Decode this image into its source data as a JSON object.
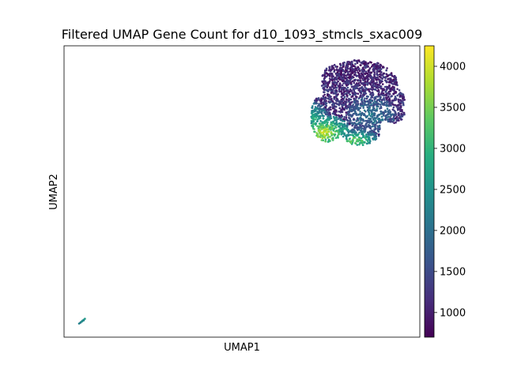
{
  "chart_data": {
    "type": "scatter",
    "title": "Filtered UMAP Gene Count for d10_1093_stmcls_sxac009",
    "xlabel": "UMAP1",
    "ylabel": "UMAP2",
    "x_ticks": [],
    "y_ticks": [],
    "grid": false,
    "colormap": "viridis",
    "colorbar": {
      "min": 700,
      "max": 4250,
      "ticks": [
        1000,
        1500,
        2000,
        2500,
        3000,
        3500,
        4000
      ],
      "tick_labels": [
        "1000",
        "1500",
        "2000",
        "2500",
        "3000",
        "3500",
        "4000"
      ]
    },
    "xlim": [
      0,
      100
    ],
    "ylim": [
      0,
      100
    ],
    "clusters": [
      {
        "name": "",
        "x_center": 78,
        "y_center": 82,
        "value_range": [
          700,
          4200
        ],
        "approx_points": 4500
      },
      {
        "name": "",
        "x_center": 5,
        "y_center": 5,
        "value_range": [
          2000,
          2600
        ],
        "approx_points": 10
      }
    ]
  }
}
